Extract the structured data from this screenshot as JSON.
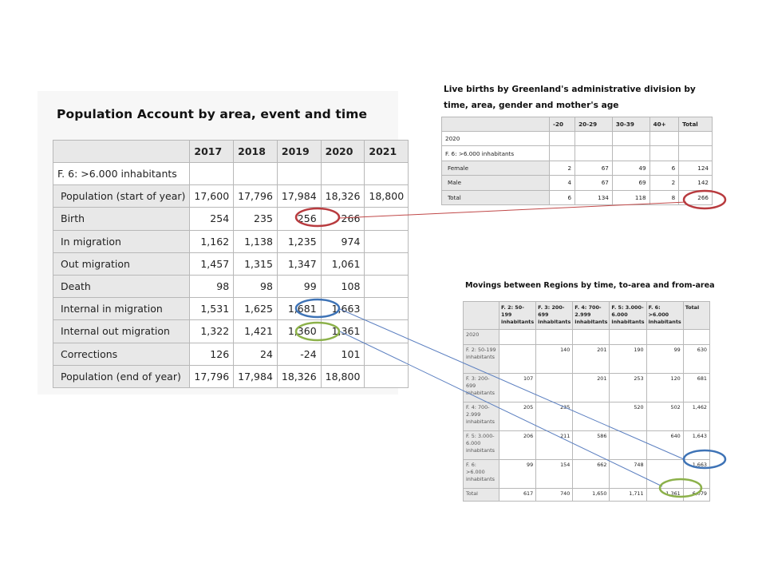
{
  "population_account": {
    "title": "Population Account by area, event and time",
    "years": [
      "2017",
      "2018",
      "2019",
      "2020",
      "2021"
    ],
    "group_label": "F. 6: >6.000 inhabitants",
    "rows": [
      {
        "label": "Population (start of year)",
        "values": [
          "17,600",
          "17,796",
          "17,984",
          "18,326",
          "18,800"
        ]
      },
      {
        "label": "Birth",
        "values": [
          "254",
          "235",
          "256",
          "266",
          ""
        ]
      },
      {
        "label": "In migration",
        "values": [
          "1,162",
          "1,138",
          "1,235",
          "974",
          ""
        ]
      },
      {
        "label": "Out migration",
        "values": [
          "1,457",
          "1,315",
          "1,347",
          "1,061",
          ""
        ]
      },
      {
        "label": "Death",
        "values": [
          "98",
          "98",
          "99",
          "108",
          ""
        ]
      },
      {
        "label": "Internal in migration",
        "values": [
          "1,531",
          "1,625",
          "1,681",
          "1,663",
          ""
        ]
      },
      {
        "label": "Internal out migration",
        "values": [
          "1,322",
          "1,421",
          "1,360",
          "1,361",
          ""
        ]
      },
      {
        "label": "Corrections",
        "values": [
          "126",
          "24",
          "-24",
          "101",
          ""
        ]
      },
      {
        "label": "Population (end of year)",
        "values": [
          "17,796",
          "17,984",
          "18,326",
          "18,800",
          ""
        ]
      }
    ]
  },
  "live_births": {
    "title": "Live births by Greenland's administrative division by time, area, gender and mother's age",
    "columns": [
      "-20",
      "20-29",
      "30-39",
      "40+",
      "Total"
    ],
    "year_label": "2020",
    "group_label": "F. 6: >6.000 inhabitants",
    "rows": [
      {
        "label": "Female",
        "values": [
          "2",
          "67",
          "49",
          "6",
          "124"
        ]
      },
      {
        "label": "Male",
        "values": [
          "4",
          "67",
          "69",
          "2",
          "142"
        ]
      },
      {
        "label": "Total",
        "values": [
          "6",
          "134",
          "118",
          "8",
          "266"
        ]
      }
    ]
  },
  "movings": {
    "title": "Movings between Regions by time, to-area and from-area",
    "columns": [
      "F. 2: 50-199 inhabitants",
      "F. 3: 200-699 inhabitants",
      "F. 4: 700-2.999 inhabitants",
      "F. 5: 3.000-6.000 inhabitants",
      "F. 6: >6.000 inhabitants",
      "Total"
    ],
    "year_label": "2020",
    "rows": [
      {
        "label": "F. 2: 50-199 inhabitants",
        "values": [
          "",
          "140",
          "201",
          "190",
          "99",
          "630"
        ]
      },
      {
        "label": "F. 3: 200-699 inhabitants",
        "values": [
          "107",
          "",
          "201",
          "253",
          "120",
          "681"
        ]
      },
      {
        "label": "F. 4: 700-2.999 inhabitants",
        "values": [
          "205",
          "235",
          "",
          "520",
          "502",
          "1,462"
        ]
      },
      {
        "label": "F. 5: 3.000-6.000 inhabitants",
        "values": [
          "206",
          "211",
          "586",
          "",
          "640",
          "1,643"
        ]
      },
      {
        "label": "F. 6: >6.000 inhabitants",
        "values": [
          "99",
          "154",
          "662",
          "748",
          "",
          "1,663"
        ]
      },
      {
        "label": "Total",
        "values": [
          "617",
          "740",
          "1,650",
          "1,711",
          "1,361",
          "6,079"
        ]
      }
    ]
  },
  "annotations": {
    "birth_color": "#b83b3f",
    "in_migration_color": "#3e73b6",
    "out_migration_color": "#8cb14a",
    "line_birth_color": "#c04848",
    "line_blue_color": "#5b7fc0"
  }
}
